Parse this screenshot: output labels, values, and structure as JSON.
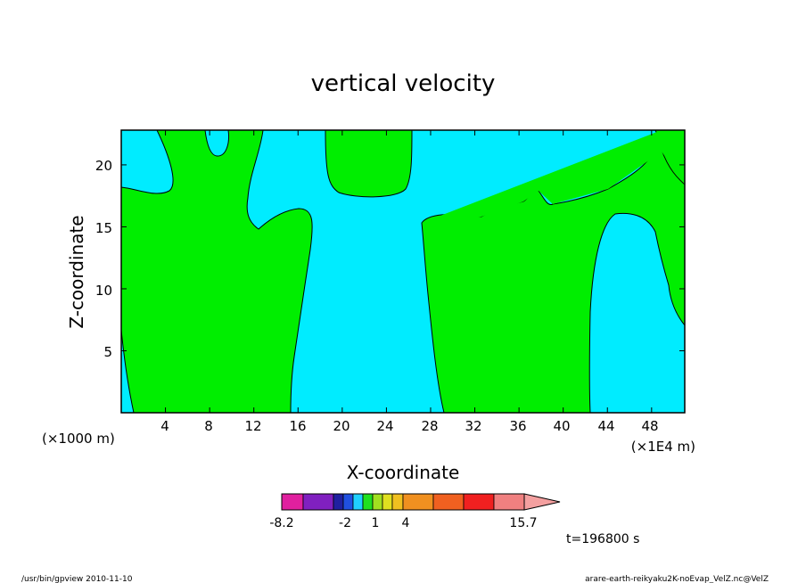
{
  "chart_data": {
    "type": "contour",
    "title": "vertical velocity",
    "xlabel": "X-coordinate",
    "ylabel": "Z-coordinate",
    "x_unit_left": "(×1000 m)",
    "x_unit_right": "(×1E4 m)",
    "x_ticks": [
      "4",
      "8",
      "12",
      "16",
      "20",
      "24",
      "28",
      "32",
      "36",
      "40",
      "44",
      "48"
    ],
    "y_ticks": [
      "5",
      "10",
      "15",
      "20"
    ],
    "xlim": [
      0,
      51
    ],
    "ylim": [
      0,
      22.8
    ],
    "time_label": "t=196800 s",
    "colorbar": {
      "min_label": "-8.2",
      "max_label": "15.7",
      "tick_labels": [
        "-8.2",
        "-2",
        "1",
        "4",
        "15.7"
      ],
      "colors": [
        "#e0209f",
        "#8020c0",
        "#2020a0",
        "#2050e0",
        "#20d0ff",
        "#20e020",
        "#a0e020",
        "#e0e020",
        "#f0c020",
        "#f09020",
        "#f06020",
        "#f02020",
        "#f08080"
      ]
    },
    "regions": [
      {
        "name": "cyan",
        "color": "#00ecff"
      },
      {
        "name": "green",
        "color": "#00ee00"
      }
    ]
  },
  "footer": {
    "left": "/usr/bin/gpview  2010-11-10",
    "right": "arare-earth-reikyaku2K-noEvap_VelZ.nc@VelZ"
  }
}
